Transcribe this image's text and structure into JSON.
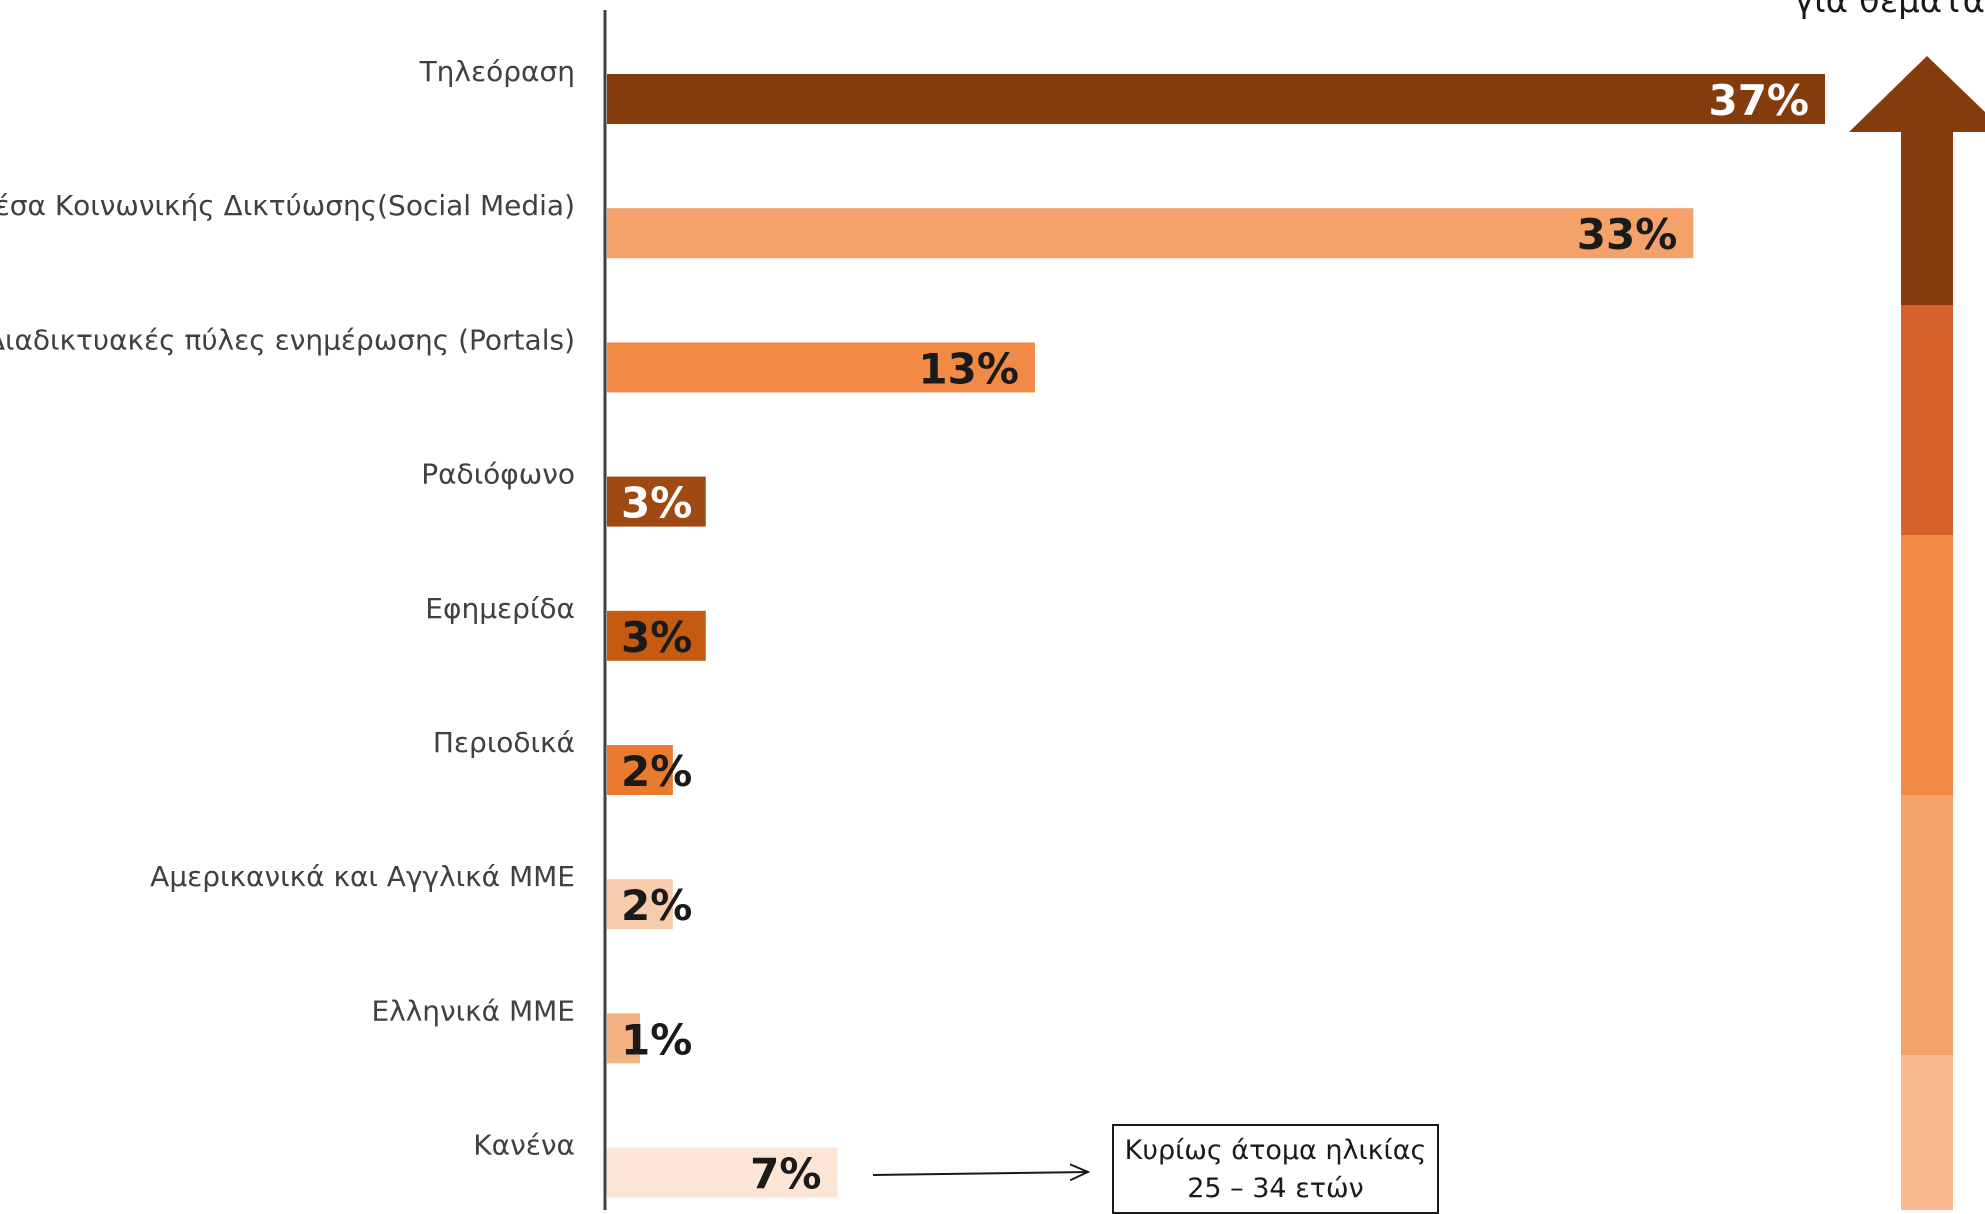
{
  "chart_data": {
    "type": "bar",
    "orientation": "horizontal",
    "title": "",
    "xlabel": "",
    "ylabel": "",
    "xlim": [
      0,
      37
    ],
    "grid": false,
    "legend": "none",
    "categories": [
      "Τηλεόραση",
      "Μέσα Κοινωνικής Δικτύωσης(Social Media)",
      "Διαδικτυακές πύλες ενημέρωσης (Portals)",
      "Ραδιόφωνο",
      "Εφημερίδα",
      "Περιοδικά",
      "Αμερικανικά και Αγγλικά ΜΜΕ",
      "Ελληνικά ΜΜΕ",
      "Κανένα"
    ],
    "values": [
      37,
      33,
      13,
      3,
      3,
      2,
      2,
      1,
      7
    ],
    "value_labels": [
      "37%",
      "33%",
      "13%",
      "3%",
      "3%",
      "2%",
      "2%",
      "1%",
      "7%"
    ],
    "bar_colors": [
      "#843c0c",
      "#f4a26a",
      "#f08a45",
      "#a04a13",
      "#c55a11",
      "#ea7a30",
      "#f8cbad",
      "#f4b183",
      "#fbe5d6"
    ],
    "label_colors": [
      "#ffffff",
      "#1a1a1a",
      "#1a1a1a",
      "#ffffff",
      "#1a1a1a",
      "#1a1a1a",
      "#1a1a1a",
      "#1a1a1a",
      "#1a1a1a"
    ]
  },
  "annotation": {
    "line1": "Κυρίως άτομα ηλικίας",
    "line2": "25 – 34 ετών"
  },
  "corner_text": "για θέματα",
  "scale_arrow_colors": [
    "#843c0c",
    "#d4622a",
    "#f08a45",
    "#f4a26a",
    "#f8b98f"
  ],
  "axis_color": "#404040"
}
